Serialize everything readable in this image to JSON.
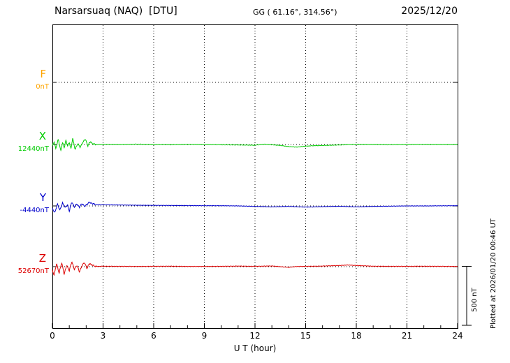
{
  "header": {
    "title": "Narsarsuaq (NAQ)  [DTU]",
    "coords": "GG ( 61.16°, 314.56°)",
    "date": "2025/12/20"
  },
  "chart_data": {
    "type": "line",
    "title": "Narsarsuaq (NAQ)  [DTU] magnetogram 2025/12/20",
    "xlabel": "U T (hour)",
    "ylabel": "",
    "xlim": [
      0,
      24
    ],
    "xticks": [
      0,
      3,
      6,
      9,
      12,
      15,
      18,
      21,
      24
    ],
    "grid": "dotted vertical lines every 3 hours, dotted horizontal baseline per component",
    "legend_position": "left",
    "scale_bar": {
      "label": "500 nT",
      "nT": 500
    },
    "plotted_at": "Plotted at 2026/01/20 00:46 UT",
    "series": [
      {
        "name": "F",
        "offset_label": "0nT",
        "color": "#FFA500",
        "visible": false,
        "points": [
          [
            0,
            0
          ],
          [
            24,
            0
          ]
        ]
      },
      {
        "name": "X",
        "offset_label": "12440nT",
        "color": "#00CC00",
        "visible": true,
        "points": [
          [
            0,
            -15
          ],
          [
            0.1,
            25
          ],
          [
            0.2,
            -35
          ],
          [
            0.35,
            45
          ],
          [
            0.5,
            -55
          ],
          [
            0.6,
            15
          ],
          [
            0.7,
            -25
          ],
          [
            0.8,
            35
          ],
          [
            0.9,
            -15
          ],
          [
            1.0,
            20
          ],
          [
            1.1,
            -40
          ],
          [
            1.2,
            55
          ],
          [
            1.35,
            -45
          ],
          [
            1.5,
            10
          ],
          [
            1.65,
            -25
          ],
          [
            1.8,
            20
          ],
          [
            1.95,
            45
          ],
          [
            2.1,
            -10
          ],
          [
            2.25,
            25
          ],
          [
            2.4,
            5
          ],
          [
            2.6,
            0
          ],
          [
            3,
            2
          ],
          [
            4,
            0
          ],
          [
            5,
            3
          ],
          [
            6,
            0
          ],
          [
            7,
            -2
          ],
          [
            8,
            2
          ],
          [
            9,
            0
          ],
          [
            10,
            -2
          ],
          [
            11,
            -4
          ],
          [
            12,
            -6
          ],
          [
            12.5,
            3
          ],
          [
            13,
            -2
          ],
          [
            13.5,
            -8
          ],
          [
            14,
            -18
          ],
          [
            14.5,
            -22
          ],
          [
            15,
            -14
          ],
          [
            15.5,
            -10
          ],
          [
            16,
            -8
          ],
          [
            17,
            -4
          ],
          [
            18,
            2
          ],
          [
            19,
            0
          ],
          [
            20,
            -2
          ],
          [
            21,
            0
          ],
          [
            22,
            1
          ],
          [
            23,
            0
          ],
          [
            24,
            0
          ]
        ]
      },
      {
        "name": "Y",
        "offset_label": "-4440nT",
        "color": "#0000CC",
        "visible": true,
        "points": [
          [
            0,
            -25
          ],
          [
            0.15,
            -55
          ],
          [
            0.3,
            15
          ],
          [
            0.45,
            -35
          ],
          [
            0.6,
            25
          ],
          [
            0.75,
            -15
          ],
          [
            0.9,
            10
          ],
          [
            1.0,
            -45
          ],
          [
            1.15,
            35
          ],
          [
            1.3,
            -10
          ],
          [
            1.45,
            18
          ],
          [
            1.6,
            -12
          ],
          [
            1.75,
            22
          ],
          [
            1.9,
            -5
          ],
          [
            2.05,
            15
          ],
          [
            2.2,
            30
          ],
          [
            2.4,
            18
          ],
          [
            2.6,
            10
          ],
          [
            3,
            10
          ],
          [
            4,
            8
          ],
          [
            5,
            6
          ],
          [
            6,
            5
          ],
          [
            7,
            4
          ],
          [
            8,
            3
          ],
          [
            9,
            2
          ],
          [
            10,
            2
          ],
          [
            11,
            0
          ],
          [
            12,
            -4
          ],
          [
            13,
            -8
          ],
          [
            14,
            -4
          ],
          [
            15,
            -10
          ],
          [
            16,
            -6
          ],
          [
            17,
            -3
          ],
          [
            18,
            -8
          ],
          [
            19,
            -4
          ],
          [
            20,
            -2
          ],
          [
            21,
            0
          ],
          [
            22,
            0
          ],
          [
            23,
            1
          ],
          [
            24,
            2
          ]
        ]
      },
      {
        "name": "Z",
        "offset_label": "52670nT",
        "color": "#DD0000",
        "visible": true,
        "points": [
          [
            0,
            -30
          ],
          [
            0.1,
            -70
          ],
          [
            0.25,
            25
          ],
          [
            0.4,
            -55
          ],
          [
            0.55,
            35
          ],
          [
            0.7,
            -65
          ],
          [
            0.85,
            15
          ],
          [
            1.0,
            -35
          ],
          [
            1.15,
            45
          ],
          [
            1.3,
            -25
          ],
          [
            1.45,
            15
          ],
          [
            1.6,
            -45
          ],
          [
            1.75,
            8
          ],
          [
            1.9,
            35
          ],
          [
            2.05,
            -15
          ],
          [
            2.2,
            28
          ],
          [
            2.4,
            10
          ],
          [
            2.6,
            2
          ],
          [
            3,
            4
          ],
          [
            4,
            3
          ],
          [
            5,
            2
          ],
          [
            6,
            3
          ],
          [
            7,
            4
          ],
          [
            8,
            2
          ],
          [
            9,
            2
          ],
          [
            10,
            3
          ],
          [
            11,
            5
          ],
          [
            12,
            3
          ],
          [
            13,
            6
          ],
          [
            13.5,
            0
          ],
          [
            14,
            -6
          ],
          [
            14.5,
            2
          ],
          [
            15,
            3
          ],
          [
            16,
            5
          ],
          [
            17,
            10
          ],
          [
            17.5,
            14
          ],
          [
            18,
            10
          ],
          [
            19,
            4
          ],
          [
            20,
            3
          ],
          [
            21,
            3
          ],
          [
            22,
            4
          ],
          [
            23,
            3
          ],
          [
            24,
            2
          ]
        ]
      }
    ]
  }
}
